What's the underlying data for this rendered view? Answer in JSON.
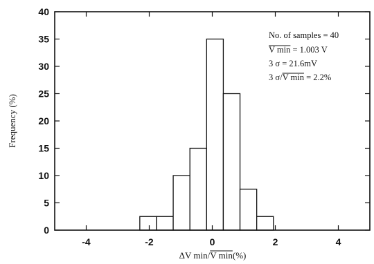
{
  "chart_data": {
    "type": "bar",
    "subtype": "histogram",
    "xlabel": "ΔV min/V min(%)",
    "xlabel_parts": {
      "prefix": "ΔV min/",
      "overlined": "V min",
      "suffix": "(%)"
    },
    "ylabel": "Frequency (%)",
    "xlim": [
      -5,
      5
    ],
    "ylim": [
      0,
      40
    ],
    "x_ticks": [
      -4,
      -2,
      0,
      2,
      4
    ],
    "y_ticks": [
      0,
      5,
      10,
      15,
      20,
      25,
      30,
      35,
      40
    ],
    "grid": false,
    "bins": [
      {
        "x0": -2.3,
        "x1": -1.77,
        "value": 2.5
      },
      {
        "x0": -1.77,
        "x1": -1.24,
        "value": 2.5
      },
      {
        "x0": -1.24,
        "x1": -0.71,
        "value": 10
      },
      {
        "x0": -0.71,
        "x1": -0.18,
        "value": 15
      },
      {
        "x0": -0.18,
        "x1": 0.35,
        "value": 35
      },
      {
        "x0": 0.35,
        "x1": 0.88,
        "value": 25
      },
      {
        "x0": 0.88,
        "x1": 1.41,
        "value": 7.5
      },
      {
        "x0": 1.41,
        "x1": 1.94,
        "value": 2.5
      }
    ],
    "annotations": [
      {
        "parts": [
          {
            "text": "No. of samples = 40",
            "overline": false
          }
        ]
      },
      {
        "parts": [
          {
            "text": "V min",
            "overline": true
          },
          {
            "text": " = 1.003 V",
            "overline": false
          }
        ]
      },
      {
        "parts": [
          {
            "text": "3 σ = 21.6mV",
            "overline": false
          }
        ]
      },
      {
        "parts": [
          {
            "text": "3 σ/",
            "overline": false
          },
          {
            "text": "V min",
            "overline": true
          },
          {
            "text": " = 2.2%",
            "overline": false
          }
        ]
      }
    ]
  }
}
